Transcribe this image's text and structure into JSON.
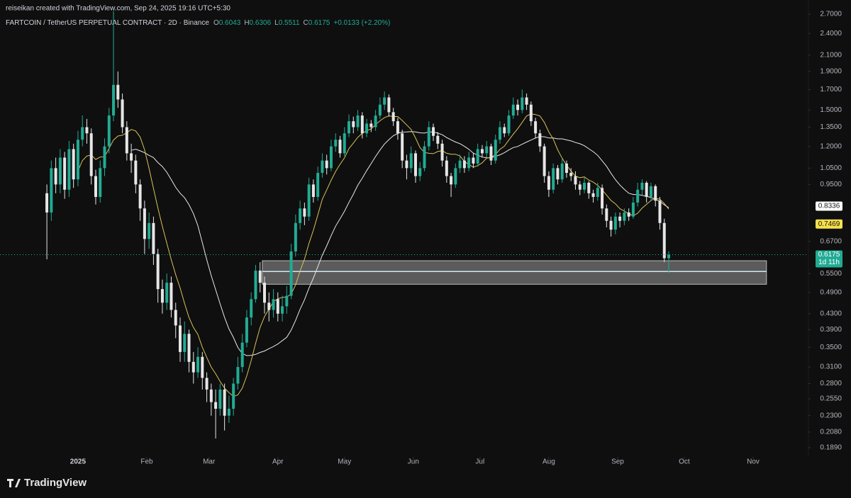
{
  "chart_data": {
    "type": "candlestick",
    "credit": "reiseikan created with TradingView.com, Sep 24, 2025 19:16 UTC+5:30",
    "title": "FARTCOIN / TetherUS PERPETUAL CONTRACT · 2D · Binance",
    "legend": {
      "open_label": "O",
      "open": 0.6043,
      "high_label": "H",
      "high": 0.6306,
      "low_label": "L",
      "low": 0.5511,
      "close_label": "C",
      "close": 0.6175,
      "change": "+0.0133 (+2.20%)"
    },
    "brand": "TradingView",
    "log_scale": true,
    "up_color": "#22ab94",
    "down_color": "#e6e6e6",
    "xlim": [
      -35.1,
      328.9
    ],
    "xticks": [
      {
        "value": 0,
        "label": "2025"
      },
      {
        "value": 31,
        "label": "Feb"
      },
      {
        "value": 59,
        "label": "Mar"
      },
      {
        "value": 90,
        "label": "Apr"
      },
      {
        "value": 120,
        "label": "May"
      },
      {
        "value": 151,
        "label": "Jun"
      },
      {
        "value": 181,
        "label": "Jul"
      },
      {
        "value": 212,
        "label": "Aug"
      },
      {
        "value": 243,
        "label": "Sep"
      },
      {
        "value": 273,
        "label": "Oct"
      },
      {
        "value": 304,
        "label": "Nov"
      }
    ],
    "ylim": [
      0.1786,
      2.82
    ],
    "yticks": [
      {
        "value": 2.7,
        "label": "2.7000"
      },
      {
        "value": 2.4,
        "label": "2.4000"
      },
      {
        "value": 2.1,
        "label": "2.1000"
      },
      {
        "value": 1.9,
        "label": "1.9000"
      },
      {
        "value": 1.7,
        "label": "1.7000"
      },
      {
        "value": 1.5,
        "label": "1.5000"
      },
      {
        "value": 1.35,
        "label": "1.3500"
      },
      {
        "value": 1.2,
        "label": "1.2000"
      },
      {
        "value": 1.05,
        "label": "1.0500"
      },
      {
        "value": 0.95,
        "label": "0.9500"
      },
      {
        "value": 0.67,
        "label": "0.6700"
      },
      {
        "value": 0.55,
        "label": "0.5500"
      },
      {
        "value": 0.49,
        "label": "0.4900"
      },
      {
        "value": 0.43,
        "label": "0.4300"
      },
      {
        "value": 0.39,
        "label": "0.3900"
      },
      {
        "value": 0.35,
        "label": "0.3500"
      },
      {
        "value": 0.31,
        "label": "0.3100"
      },
      {
        "value": 0.28,
        "label": "0.2800"
      },
      {
        "value": 0.255,
        "label": "0.2550"
      },
      {
        "value": 0.23,
        "label": "0.2300"
      },
      {
        "value": 0.208,
        "label": "0.2080"
      },
      {
        "value": 0.189,
        "label": "0.1890"
      }
    ],
    "x": [
      -14,
      -12,
      -10,
      -8,
      -6,
      -4,
      -2,
      0,
      2,
      4,
      6,
      8,
      10,
      12,
      14,
      16,
      18,
      20,
      22,
      24,
      26,
      28,
      30,
      32,
      34,
      36,
      38,
      40,
      42,
      44,
      46,
      48,
      50,
      52,
      54,
      56,
      58,
      60,
      62,
      64,
      66,
      68,
      70,
      72,
      74,
      76,
      78,
      80,
      82,
      84,
      86,
      88,
      90,
      92,
      94,
      96,
      98,
      100,
      102,
      104,
      106,
      108,
      110,
      112,
      114,
      116,
      118,
      120,
      122,
      124,
      126,
      128,
      130,
      132,
      134,
      136,
      138,
      140,
      142,
      144,
      146,
      148,
      150,
      152,
      154,
      156,
      158,
      160,
      162,
      164,
      166,
      168,
      170,
      172,
      174,
      176,
      178,
      180,
      182,
      184,
      186,
      188,
      190,
      192,
      194,
      196,
      198,
      200,
      202,
      204,
      206,
      208,
      210,
      212,
      214,
      216,
      218,
      220,
      222,
      224,
      226,
      228,
      230,
      232,
      234,
      236,
      238,
      240,
      242,
      244,
      246,
      248,
      250,
      252,
      254,
      256,
      258,
      260,
      262,
      264,
      266
    ],
    "open": [
      0.9,
      0.8,
      1.05,
      0.95,
      1.12,
      0.92,
      1.18,
      0.98,
      1.25,
      1.35,
      1.3,
      1.0,
      0.88,
      1.05,
      1.2,
      1.45,
      1.75,
      1.6,
      1.35,
      1.15,
      1.1,
      0.95,
      0.82,
      0.68,
      0.75,
      0.62,
      0.5,
      0.46,
      0.52,
      0.44,
      0.4,
      0.34,
      0.38,
      0.32,
      0.3,
      0.33,
      0.29,
      0.27,
      0.25,
      0.24,
      0.27,
      0.23,
      0.24,
      0.28,
      0.31,
      0.36,
      0.42,
      0.47,
      0.56,
      0.52,
      0.46,
      0.44,
      0.47,
      0.43,
      0.45,
      0.48,
      0.63,
      0.75,
      0.82,
      0.78,
      0.95,
      0.88,
      1.02,
      1.1,
      1.05,
      1.2,
      1.25,
      1.15,
      1.3,
      1.4,
      1.35,
      1.45,
      1.3,
      1.38,
      1.35,
      1.45,
      1.55,
      1.62,
      1.48,
      1.4,
      1.3,
      1.1,
      1.05,
      1.15,
      1.0,
      1.05,
      1.2,
      1.35,
      1.28,
      1.22,
      1.1,
      1.0,
      0.95,
      1.05,
      1.1,
      1.05,
      1.12,
      1.08,
      1.18,
      1.15,
      1.2,
      1.1,
      1.25,
      1.35,
      1.3,
      1.45,
      1.55,
      1.5,
      1.62,
      1.55,
      1.4,
      1.3,
      1.2,
      1.0,
      0.92,
      1.05,
      0.98,
      1.08,
      1.02,
      1.0,
      0.95,
      0.92,
      0.96,
      0.9,
      0.88,
      0.93,
      0.82,
      0.76,
      0.72,
      0.78,
      0.76,
      0.8,
      0.78,
      0.85,
      0.92,
      0.96,
      0.88,
      0.94,
      0.86,
      0.75,
      0.6043
    ],
    "high": [
      0.95,
      1.1,
      1.12,
      1.18,
      1.16,
      1.24,
      1.22,
      1.32,
      1.45,
      1.42,
      1.34,
      1.04,
      1.1,
      1.26,
      1.52,
      2.75,
      1.9,
      1.66,
      1.4,
      1.22,
      1.14,
      0.98,
      0.86,
      0.8,
      0.78,
      0.64,
      0.53,
      0.55,
      0.54,
      0.46,
      0.42,
      0.41,
      0.39,
      0.34,
      0.35,
      0.34,
      0.3,
      0.28,
      0.27,
      0.28,
      0.28,
      0.26,
      0.29,
      0.33,
      0.38,
      0.44,
      0.49,
      0.58,
      0.59,
      0.54,
      0.49,
      0.5,
      0.49,
      0.48,
      0.51,
      0.66,
      0.79,
      0.86,
      0.85,
      0.99,
      0.98,
      1.06,
      1.15,
      1.14,
      1.25,
      1.3,
      1.28,
      1.35,
      1.46,
      1.44,
      1.5,
      1.48,
      1.42,
      1.41,
      1.5,
      1.62,
      1.68,
      1.65,
      1.52,
      1.43,
      1.33,
      1.14,
      1.2,
      1.17,
      1.09,
      1.24,
      1.4,
      1.38,
      1.31,
      1.25,
      1.13,
      1.02,
      1.08,
      1.14,
      1.13,
      1.16,
      1.15,
      1.22,
      1.21,
      1.24,
      1.22,
      1.29,
      1.4,
      1.38,
      1.5,
      1.62,
      1.6,
      1.7,
      1.66,
      1.58,
      1.43,
      1.33,
      1.22,
      1.03,
      1.08,
      1.07,
      1.11,
      1.1,
      1.05,
      1.03,
      0.97,
      0.99,
      0.97,
      0.92,
      0.96,
      0.95,
      0.84,
      0.78,
      0.8,
      0.8,
      0.82,
      0.82,
      0.88,
      0.96,
      0.98,
      0.97,
      0.96,
      0.95,
      0.88,
      0.77,
      0.6306
    ],
    "low": [
      0.6,
      0.76,
      0.9,
      0.9,
      0.87,
      0.88,
      0.93,
      0.94,
      1.2,
      1.22,
      0.95,
      0.84,
      0.85,
      1.0,
      1.15,
      1.4,
      1.52,
      1.3,
      1.1,
      1.02,
      0.9,
      0.76,
      0.62,
      0.64,
      0.58,
      0.46,
      0.43,
      0.44,
      0.42,
      0.37,
      0.32,
      0.32,
      0.3,
      0.28,
      0.29,
      0.27,
      0.25,
      0.23,
      0.2,
      0.23,
      0.21,
      0.22,
      0.23,
      0.27,
      0.3,
      0.35,
      0.4,
      0.46,
      0.49,
      0.43,
      0.41,
      0.42,
      0.41,
      0.41,
      0.43,
      0.47,
      0.61,
      0.72,
      0.74,
      0.76,
      0.85,
      0.86,
      0.99,
      1.01,
      1.03,
      1.16,
      1.12,
      1.13,
      1.27,
      1.3,
      1.32,
      1.26,
      1.27,
      1.31,
      1.32,
      1.42,
      1.5,
      1.44,
      1.36,
      1.25,
      1.05,
      0.98,
      1.02,
      0.96,
      0.97,
      1.03,
      1.17,
      1.24,
      1.18,
      1.06,
      0.96,
      0.88,
      0.93,
      1.02,
      1.02,
      1.03,
      1.05,
      1.06,
      1.12,
      1.12,
      1.07,
      1.08,
      1.22,
      1.27,
      1.28,
      1.42,
      1.45,
      1.47,
      1.5,
      1.36,
      1.26,
      1.16,
      0.96,
      0.88,
      0.9,
      0.95,
      0.96,
      0.99,
      0.97,
      0.92,
      0.89,
      0.9,
      0.87,
      0.85,
      0.86,
      0.79,
      0.73,
      0.69,
      0.7,
      0.73,
      0.74,
      0.76,
      0.77,
      0.83,
      0.89,
      0.85,
      0.86,
      0.83,
      0.72,
      0.59,
      0.5511
    ],
    "close": [
      0.8,
      1.05,
      0.95,
      1.12,
      0.92,
      1.18,
      0.98,
      1.25,
      1.35,
      1.3,
      1.0,
      0.88,
      1.05,
      1.2,
      1.45,
      1.75,
      1.6,
      1.35,
      1.15,
      1.1,
      0.95,
      0.82,
      0.68,
      0.75,
      0.62,
      0.5,
      0.46,
      0.52,
      0.44,
      0.4,
      0.34,
      0.38,
      0.32,
      0.3,
      0.33,
      0.29,
      0.27,
      0.25,
      0.24,
      0.27,
      0.23,
      0.24,
      0.28,
      0.31,
      0.36,
      0.42,
      0.47,
      0.56,
      0.52,
      0.46,
      0.44,
      0.47,
      0.43,
      0.45,
      0.48,
      0.63,
      0.75,
      0.82,
      0.78,
      0.95,
      0.88,
      1.02,
      1.1,
      1.05,
      1.2,
      1.25,
      1.15,
      1.3,
      1.4,
      1.35,
      1.45,
      1.3,
      1.38,
      1.35,
      1.45,
      1.55,
      1.62,
      1.48,
      1.4,
      1.3,
      1.1,
      1.05,
      1.15,
      1.0,
      1.05,
      1.2,
      1.35,
      1.28,
      1.22,
      1.1,
      1.0,
      0.95,
      1.05,
      1.1,
      1.05,
      1.12,
      1.08,
      1.18,
      1.15,
      1.2,
      1.1,
      1.25,
      1.35,
      1.3,
      1.45,
      1.55,
      1.5,
      1.62,
      1.55,
      1.4,
      1.3,
      1.2,
      1.0,
      0.92,
      1.05,
      0.98,
      1.08,
      1.02,
      1.0,
      0.95,
      0.92,
      0.96,
      0.9,
      0.88,
      0.93,
      0.82,
      0.76,
      0.72,
      0.78,
      0.76,
      0.8,
      0.78,
      0.85,
      0.92,
      0.96,
      0.88,
      0.94,
      0.86,
      0.75,
      0.6043,
      0.6175
    ],
    "zone": {
      "low": 0.515,
      "high": 0.595,
      "level": 0.557,
      "x": [
        83,
        310
      ]
    },
    "price_tags": [
      {
        "value": 0.8336,
        "color": "#ffffff"
      },
      {
        "value": 0.7469,
        "color": "#f5e04a"
      },
      {
        "value": 0.6175,
        "color": "#22ab94",
        "countdown": "1d 11h"
      }
    ]
  }
}
